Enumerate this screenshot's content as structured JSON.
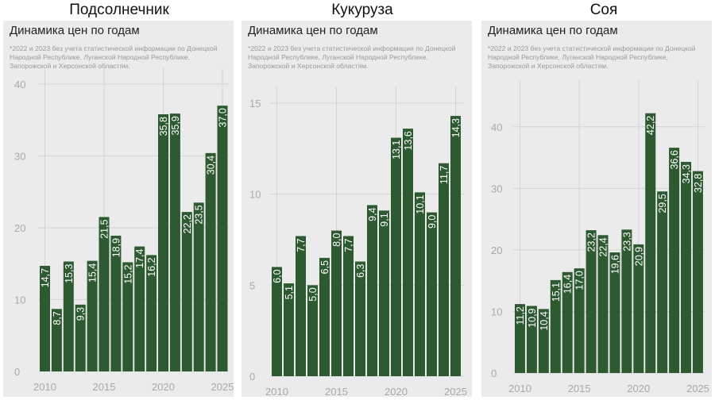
{
  "chart_data": [
    {
      "type": "bar",
      "panel_title": "Подсолнечник",
      "title": "Динамика цен по годам",
      "note": "*2022 и 2023 без учета статистической информации по Донецкой Народной Республике, Луганской Народной Республике, Запорожской и Херсонской областям.",
      "years": [
        2010,
        2011,
        2012,
        2013,
        2014,
        2015,
        2016,
        2017,
        2018,
        2019,
        2020,
        2021,
        2022,
        2023,
        2024,
        2025
      ],
      "values": [
        14.7,
        8.7,
        15.3,
        9.3,
        15.4,
        21.5,
        18.9,
        15.2,
        17.4,
        16.2,
        35.8,
        35.9,
        22.2,
        23.5,
        30.4,
        37.0
      ],
      "labels": [
        "14,7",
        "8,7",
        "15,3",
        "9,3",
        "15,4",
        "21,5",
        "18,9",
        "15,2",
        "17,4",
        "16,2",
        "35,8",
        "35,9",
        "22,2",
        "23,5",
        "30,4",
        "37,0"
      ],
      "yticks": [
        0,
        10,
        20,
        30,
        40
      ],
      "ylim": [
        0,
        40
      ],
      "xticks": [
        2010,
        2015,
        2020,
        2025
      ],
      "bar_color": "#2e5a32"
    },
    {
      "type": "bar",
      "panel_title": "Кукуруза",
      "title": "Динамика цен по годам",
      "note": "*2022 и 2023 без учета статистической информации по Донецкой Народной Республике, Луганской Народной Республике, Запорожской и Херсонской областям.",
      "years": [
        2010,
        2011,
        2012,
        2013,
        2014,
        2015,
        2016,
        2017,
        2018,
        2019,
        2020,
        2021,
        2022,
        2023,
        2024,
        2025
      ],
      "values": [
        6.0,
        5.1,
        7.7,
        5.0,
        6.5,
        8.0,
        7.7,
        6.3,
        9.4,
        9.1,
        13.1,
        13.6,
        10.1,
        9.0,
        11.7,
        14.3
      ],
      "labels": [
        "6,0",
        "5,1",
        "7,7",
        "5,0",
        "6,5",
        "8,0",
        "7,7",
        "6,3",
        "9,4",
        "9,1",
        "13,1",
        "13,6",
        "10,1",
        "9,0",
        "11,7",
        "14,3"
      ],
      "yticks": [
        0,
        5,
        10,
        15
      ],
      "ylim": [
        0,
        15
      ],
      "xticks": [
        2010,
        2015,
        2020,
        2025
      ],
      "bar_color": "#2e5a32"
    },
    {
      "type": "bar",
      "panel_title": "Соя",
      "title": "Динамика цен по годам",
      "note": "*2022 и 2023 без учета статистической информации по Донецкой Народной Республике, Луганской Народной Республике, Запорожской и Херсонской областям.",
      "years": [
        2010,
        2011,
        2012,
        2013,
        2014,
        2015,
        2016,
        2017,
        2018,
        2019,
        2020,
        2021,
        2022,
        2023,
        2024,
        2025
      ],
      "values": [
        11.2,
        10.9,
        10.4,
        15.1,
        16.4,
        17.0,
        23.2,
        22.4,
        19.6,
        23.3,
        20.9,
        42.2,
        29.5,
        36.6,
        34.3,
        32.8
      ],
      "labels": [
        "11,2",
        "10,9",
        "10,4",
        "15,1",
        "16,4",
        "17,0",
        "23,2",
        "22,4",
        "19,6",
        "23,3",
        "20,9",
        "42,2",
        "29,5",
        "36,6",
        "34,3",
        "32,8"
      ],
      "yticks": [
        0,
        10,
        20,
        30,
        40
      ],
      "ylim": [
        0,
        45
      ],
      "xticks": [
        2010,
        2015,
        2020,
        2025
      ],
      "bar_color": "#2e5a32"
    }
  ]
}
